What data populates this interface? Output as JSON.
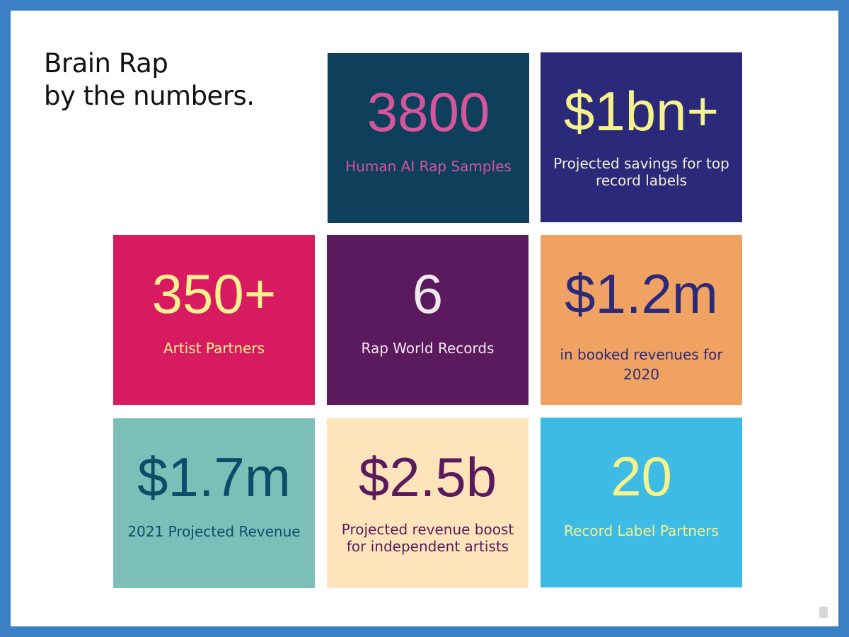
{
  "header": {
    "title": [
      "Brain Rap",
      "by the numbers."
    ]
  },
  "tiles": [
    {
      "value": "3800",
      "label": [
        "Human AI Rap Samples"
      ]
    },
    {
      "value": "$1bn+",
      "label": [
        "Projected savings for top",
        "record labels"
      ]
    },
    {
      "value": "350+",
      "label": [
        "Artist Partners"
      ]
    },
    {
      "value": "6",
      "label": [
        "Rap World Records"
      ]
    },
    {
      "value": "$1.2m",
      "label": [
        "in booked revenues for",
        "2020"
      ]
    },
    {
      "value": "$1.7m",
      "label": [
        "2021 Projected Revenue"
      ]
    },
    {
      "value": "$2.5b",
      "label": [
        "Projected revenue boost",
        "for independent artists"
      ]
    },
    {
      "value": "20",
      "label": [
        "Record Label Partners"
      ]
    }
  ]
}
